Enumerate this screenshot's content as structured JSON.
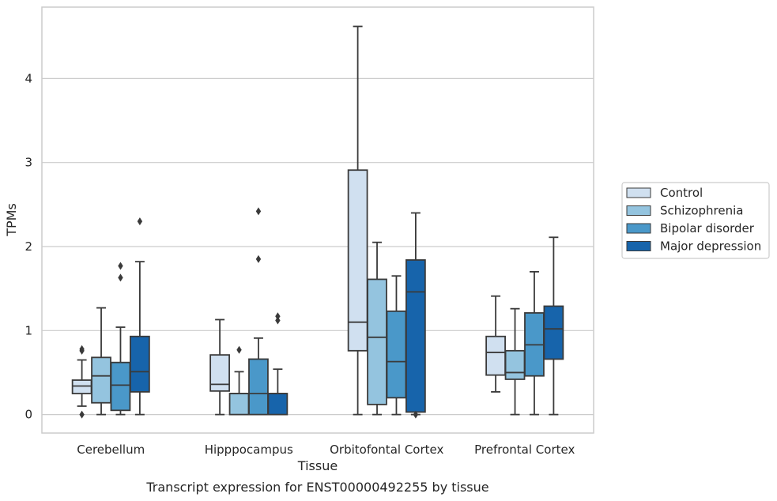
{
  "chart_data": {
    "type": "box",
    "caption": "Transcript expression for ENST00000492255 by tissue",
    "xlabel": "Tissue",
    "ylabel": "TPMs",
    "ylim": [
      -0.22,
      4.85
    ],
    "yticks": [
      0,
      1,
      2,
      3,
      4
    ],
    "grid": "horizontal",
    "legend_position": "right",
    "categories": [
      "Cerebellum",
      "Hipppocampus",
      "Orbitofontal Cortex",
      "Prefrontal Cortex"
    ],
    "series": [
      {
        "name": "Control",
        "color": "#d0e0f0",
        "boxes": [
          {
            "whisker_low": 0.1,
            "q1": 0.25,
            "median": 0.34,
            "q3": 0.41,
            "whisker_high": 0.65,
            "outliers": [
              0.0,
              0.76,
              0.78
            ]
          },
          {
            "whisker_low": 0.0,
            "q1": 0.28,
            "median": 0.36,
            "q3": 0.71,
            "whisker_high": 1.13,
            "outliers": []
          },
          {
            "whisker_low": 0.0,
            "q1": 0.76,
            "median": 1.1,
            "q3": 2.91,
            "whisker_high": 4.62,
            "outliers": []
          },
          {
            "whisker_low": 0.27,
            "q1": 0.47,
            "median": 0.74,
            "q3": 0.93,
            "whisker_high": 1.41,
            "outliers": []
          }
        ]
      },
      {
        "name": "Schizophrenia",
        "color": "#94c4df",
        "boxes": [
          {
            "whisker_low": 0.0,
            "q1": 0.14,
            "median": 0.46,
            "q3": 0.68,
            "whisker_high": 1.27,
            "outliers": []
          },
          {
            "whisker_low": 0.0,
            "q1": 0.0,
            "median": 0.25,
            "q3": 0.25,
            "whisker_high": 0.51,
            "outliers": [
              0.77
            ]
          },
          {
            "whisker_low": 0.0,
            "q1": 0.12,
            "median": 0.92,
            "q3": 1.61,
            "whisker_high": 2.05,
            "outliers": []
          },
          {
            "whisker_low": 0.0,
            "q1": 0.42,
            "median": 0.5,
            "q3": 0.76,
            "whisker_high": 1.26,
            "outliers": []
          }
        ]
      },
      {
        "name": "Bipolar disorder",
        "color": "#4a98c9",
        "boxes": [
          {
            "whisker_low": 0.0,
            "q1": 0.05,
            "median": 0.35,
            "q3": 0.62,
            "whisker_high": 1.04,
            "outliers": [
              1.63,
              1.77
            ]
          },
          {
            "whisker_low": 0.0,
            "q1": 0.0,
            "median": 0.25,
            "q3": 0.66,
            "whisker_high": 0.91,
            "outliers": [
              1.85,
              2.42
            ]
          },
          {
            "whisker_low": 0.0,
            "q1": 0.2,
            "median": 0.63,
            "q3": 1.23,
            "whisker_high": 1.65,
            "outliers": []
          },
          {
            "whisker_low": 0.0,
            "q1": 0.46,
            "median": 0.83,
            "q3": 1.21,
            "whisker_high": 1.7,
            "outliers": []
          }
        ]
      },
      {
        "name": "Major depression",
        "color": "#1764ab",
        "boxes": [
          {
            "whisker_low": 0.0,
            "q1": 0.27,
            "median": 0.51,
            "q3": 0.93,
            "whisker_high": 1.82,
            "outliers": [
              2.3
            ]
          },
          {
            "whisker_low": 0.0,
            "q1": 0.0,
            "median": 0.25,
            "q3": 0.25,
            "whisker_high": 0.54,
            "outliers": [
              1.12,
              1.17
            ]
          },
          {
            "whisker_low": 0.0,
            "q1": 0.03,
            "median": 1.46,
            "q3": 1.84,
            "whisker_high": 2.4,
            "outliers": [
              0.0
            ]
          },
          {
            "whisker_low": 0.0,
            "q1": 0.66,
            "median": 1.02,
            "q3": 1.29,
            "whisker_high": 2.11,
            "outliers": []
          }
        ]
      }
    ]
  }
}
